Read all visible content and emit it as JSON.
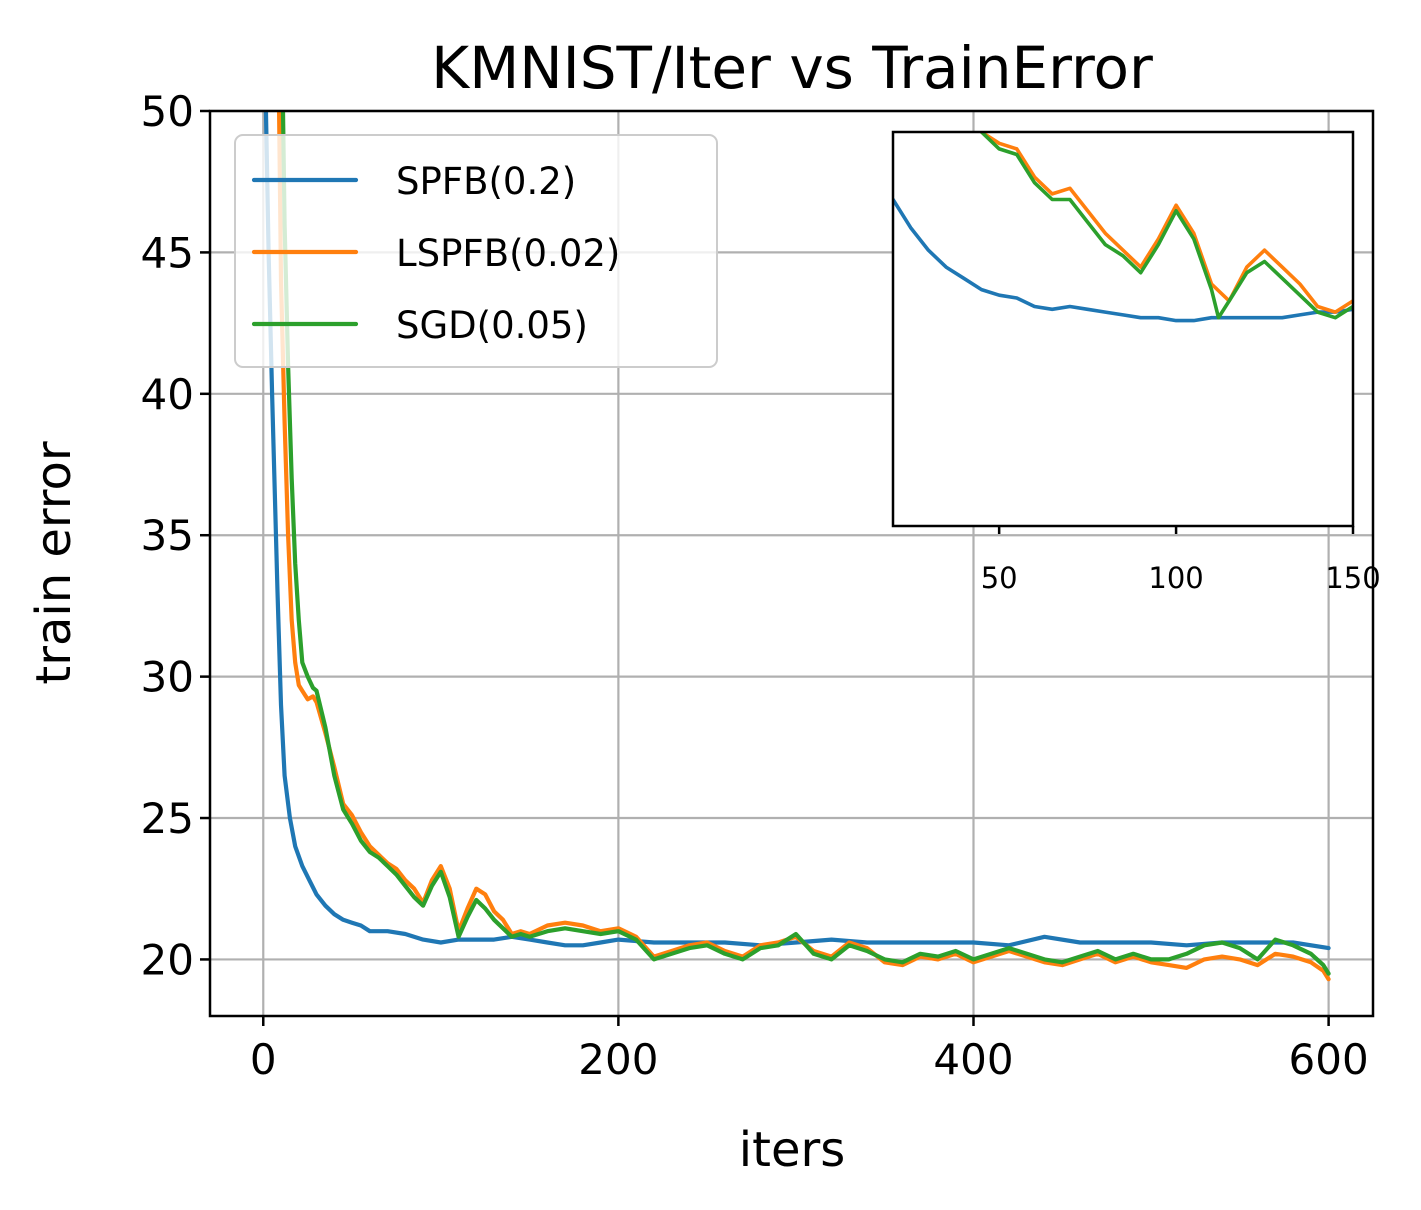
{
  "chart_data": {
    "type": "line",
    "title": "KMNIST/Iter vs TrainError",
    "xlabel": "iters",
    "ylabel": "train error",
    "xlim": [
      -30,
      625
    ],
    "ylim": [
      18,
      50
    ],
    "xticks": [
      0,
      200,
      400,
      600
    ],
    "yticks": [
      20,
      25,
      30,
      35,
      40,
      45,
      50
    ],
    "grid": true,
    "legend_position": "top-left",
    "series": [
      {
        "name": "SPFB(0.2)",
        "color": "#1f77b4",
        "x": [
          0,
          3,
          5,
          8,
          10,
          12,
          15,
          18,
          22,
          26,
          30,
          35,
          40,
          45,
          50,
          55,
          60,
          70,
          80,
          90,
          100,
          110,
          120,
          130,
          140,
          150,
          160,
          170,
          180,
          190,
          200,
          220,
          240,
          260,
          280,
          300,
          320,
          340,
          360,
          380,
          400,
          420,
          440,
          460,
          480,
          500,
          520,
          540,
          560,
          580,
          600
        ],
        "y": [
          55,
          45,
          40,
          33,
          29,
          26.5,
          25.0,
          24.0,
          23.3,
          22.8,
          22.3,
          21.9,
          21.6,
          21.4,
          21.3,
          21.2,
          21.0,
          21.0,
          20.9,
          20.7,
          20.6,
          20.7,
          20.7,
          20.7,
          20.8,
          20.7,
          20.6,
          20.5,
          20.5,
          20.6,
          20.7,
          20.6,
          20.6,
          20.6,
          20.5,
          20.6,
          20.7,
          20.6,
          20.6,
          20.6,
          20.6,
          20.5,
          20.8,
          20.6,
          20.6,
          20.6,
          20.5,
          20.6,
          20.6,
          20.6,
          20.4
        ]
      },
      {
        "name": "LSPFB(0.02)",
        "color": "#ff7f0e",
        "x": [
          8,
          10,
          12,
          14,
          16,
          18,
          20,
          22,
          25,
          28,
          30,
          35,
          40,
          45,
          50,
          55,
          60,
          65,
          70,
          75,
          80,
          85,
          90,
          95,
          100,
          105,
          110,
          115,
          120,
          125,
          130,
          135,
          140,
          145,
          150,
          160,
          170,
          180,
          190,
          200,
          210,
          220,
          230,
          240,
          250,
          260,
          270,
          280,
          290,
          300,
          310,
          320,
          330,
          340,
          350,
          360,
          370,
          380,
          390,
          400,
          410,
          420,
          430,
          440,
          450,
          460,
          470,
          480,
          490,
          500,
          510,
          520,
          530,
          540,
          550,
          560,
          570,
          580,
          590,
          597,
          600
        ],
        "y": [
          55,
          44,
          39,
          35,
          32,
          30.5,
          29.7,
          29.5,
          29.2,
          29.3,
          29.1,
          28.0,
          26.8,
          25.5,
          25.1,
          24.5,
          24.0,
          23.7,
          23.4,
          23.2,
          22.8,
          22.5,
          22.0,
          22.8,
          23.3,
          22.5,
          21.0,
          21.8,
          22.5,
          22.3,
          21.7,
          21.4,
          20.9,
          21.0,
          20.9,
          21.2,
          21.3,
          21.2,
          21.0,
          21.1,
          20.8,
          20.1,
          20.3,
          20.5,
          20.6,
          20.3,
          20.1,
          20.5,
          20.6,
          20.8,
          20.3,
          20.1,
          20.6,
          20.4,
          19.9,
          19.8,
          20.1,
          20.0,
          20.2,
          19.9,
          20.1,
          20.3,
          20.1,
          19.9,
          19.8,
          20.0,
          20.2,
          19.9,
          20.1,
          19.9,
          19.8,
          19.7,
          20.0,
          20.1,
          20.0,
          19.8,
          20.2,
          20.1,
          19.9,
          19.6,
          19.3
        ]
      },
      {
        "name": "SGD(0.05)",
        "color": "#2ca02c",
        "x": [
          10,
          12,
          14,
          16,
          18,
          20,
          22,
          25,
          28,
          30,
          35,
          40,
          45,
          50,
          55,
          60,
          65,
          70,
          75,
          80,
          85,
          90,
          95,
          100,
          105,
          110,
          115,
          120,
          125,
          130,
          135,
          140,
          145,
          150,
          160,
          170,
          180,
          190,
          200,
          210,
          220,
          230,
          240,
          250,
          260,
          270,
          280,
          290,
          300,
          310,
          320,
          330,
          340,
          350,
          360,
          370,
          380,
          390,
          400,
          410,
          420,
          430,
          440,
          450,
          460,
          470,
          480,
          490,
          500,
          510,
          520,
          530,
          540,
          550,
          560,
          570,
          580,
          590,
          597,
          600
        ],
        "y": [
          55,
          46,
          41,
          37,
          34,
          32,
          30.5,
          30.0,
          29.6,
          29.5,
          28.2,
          26.5,
          25.3,
          24.8,
          24.2,
          23.8,
          23.6,
          23.3,
          23.0,
          22.6,
          22.2,
          21.9,
          22.6,
          23.1,
          22.2,
          20.8,
          21.5,
          22.1,
          21.8,
          21.4,
          21.1,
          20.8,
          20.9,
          20.8,
          21.0,
          21.1,
          21.0,
          20.9,
          21.0,
          20.7,
          20.0,
          20.2,
          20.4,
          20.5,
          20.2,
          20.0,
          20.4,
          20.5,
          20.9,
          20.2,
          20.0,
          20.5,
          20.3,
          20.0,
          19.9,
          20.2,
          20.1,
          20.3,
          20.0,
          20.2,
          20.4,
          20.2,
          20.0,
          19.9,
          20.1,
          20.3,
          20.0,
          20.2,
          20.0,
          20.0,
          20.2,
          20.5,
          20.6,
          20.4,
          20.0,
          20.7,
          20.5,
          20.2,
          19.8,
          19.5
        ]
      }
    ],
    "inset": {
      "type": "line",
      "xlim": [
        20,
        150
      ],
      "ylim": [
        19,
        26
      ],
      "xticks": [
        50,
        100,
        150
      ],
      "grid": false,
      "series": [
        {
          "name": "SPFB(0.2)",
          "color": "#1f77b4",
          "x": [
            20,
            25,
            30,
            35,
            40,
            45,
            50,
            55,
            60,
            65,
            70,
            75,
            80,
            85,
            90,
            95,
            100,
            105,
            110,
            115,
            120,
            125,
            130,
            135,
            140,
            145,
            150
          ],
          "y": [
            24.8,
            24.3,
            23.9,
            23.6,
            23.4,
            23.2,
            23.1,
            23.05,
            22.9,
            22.85,
            22.9,
            22.85,
            22.8,
            22.75,
            22.7,
            22.7,
            22.65,
            22.65,
            22.7,
            22.7,
            22.7,
            22.7,
            22.7,
            22.75,
            22.8,
            22.8,
            22.85
          ]
        },
        {
          "name": "LSPFB(0.02)",
          "color": "#ff7f0e",
          "x": [
            45,
            50,
            55,
            60,
            65,
            70,
            75,
            80,
            85,
            90,
            95,
            100,
            105,
            110,
            115,
            120,
            125,
            130,
            135,
            140,
            145,
            150
          ],
          "y": [
            26.0,
            25.8,
            25.7,
            25.2,
            24.9,
            25.0,
            24.6,
            24.2,
            23.9,
            23.6,
            24.1,
            24.7,
            24.2,
            23.3,
            23.0,
            23.6,
            23.9,
            23.6,
            23.3,
            22.9,
            22.8,
            23.0
          ]
        },
        {
          "name": "SGD(0.05)",
          "color": "#2ca02c",
          "x": [
            45,
            50,
            55,
            60,
            65,
            70,
            75,
            80,
            85,
            90,
            95,
            100,
            105,
            110,
            112,
            115,
            120,
            125,
            130,
            135,
            140,
            145,
            150
          ],
          "y": [
            26.0,
            25.7,
            25.6,
            25.1,
            24.8,
            24.8,
            24.4,
            24.0,
            23.8,
            23.5,
            24.0,
            24.6,
            24.1,
            23.2,
            22.7,
            23.0,
            23.5,
            23.7,
            23.4,
            23.1,
            22.8,
            22.7,
            22.9
          ]
        }
      ]
    }
  }
}
